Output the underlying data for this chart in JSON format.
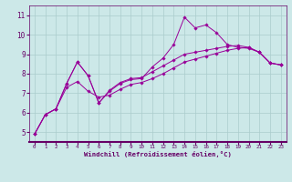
{
  "xlabel": "Windchill (Refroidissement éolien,°C)",
  "bg_color": "#cce8e8",
  "line_color": "#990099",
  "axis_color": "#660066",
  "grid_color": "#aacccc",
  "xlim": [
    -0.5,
    23.5
  ],
  "ylim": [
    4.5,
    11.5
  ],
  "yticks": [
    5,
    6,
    7,
    8,
    9,
    10,
    11
  ],
  "xticks": [
    0,
    1,
    2,
    3,
    4,
    5,
    6,
    7,
    8,
    9,
    10,
    11,
    12,
    13,
    14,
    15,
    16,
    17,
    18,
    19,
    20,
    21,
    22,
    23
  ],
  "series1_x": [
    0,
    1,
    2,
    3,
    4,
    5,
    6,
    7,
    8,
    9,
    10,
    11,
    12,
    13,
    14,
    15,
    16,
    17,
    18,
    19,
    20,
    21,
    22,
    23
  ],
  "series1_y": [
    4.9,
    5.9,
    6.2,
    7.5,
    8.6,
    7.9,
    6.5,
    7.1,
    7.5,
    7.7,
    7.75,
    8.35,
    8.8,
    9.5,
    10.9,
    10.35,
    10.5,
    10.1,
    9.5,
    9.35,
    9.3,
    9.1,
    8.55,
    8.45
  ],
  "series2_x": [
    0,
    1,
    2,
    3,
    4,
    5,
    6,
    7,
    8,
    9,
    10,
    11,
    12,
    13,
    14,
    15,
    16,
    17,
    18,
    19,
    20,
    21,
    22,
    23
  ],
  "series2_y": [
    4.9,
    5.9,
    6.2,
    7.3,
    7.6,
    7.1,
    6.8,
    6.9,
    7.2,
    7.45,
    7.55,
    7.75,
    8.0,
    8.3,
    8.6,
    8.75,
    8.9,
    9.05,
    9.2,
    9.3,
    9.35,
    9.1,
    8.55,
    8.45
  ],
  "series3_x": [
    0,
    1,
    2,
    3,
    4,
    5,
    6,
    7,
    8,
    9,
    10,
    11,
    12,
    13,
    14,
    15,
    16,
    17,
    18,
    19,
    20,
    21,
    22,
    23
  ],
  "series3_y": [
    4.9,
    5.9,
    6.2,
    7.5,
    8.6,
    7.9,
    6.5,
    7.15,
    7.55,
    7.75,
    7.8,
    8.1,
    8.4,
    8.7,
    9.0,
    9.1,
    9.2,
    9.3,
    9.4,
    9.45,
    9.35,
    9.1,
    8.55,
    8.45
  ]
}
